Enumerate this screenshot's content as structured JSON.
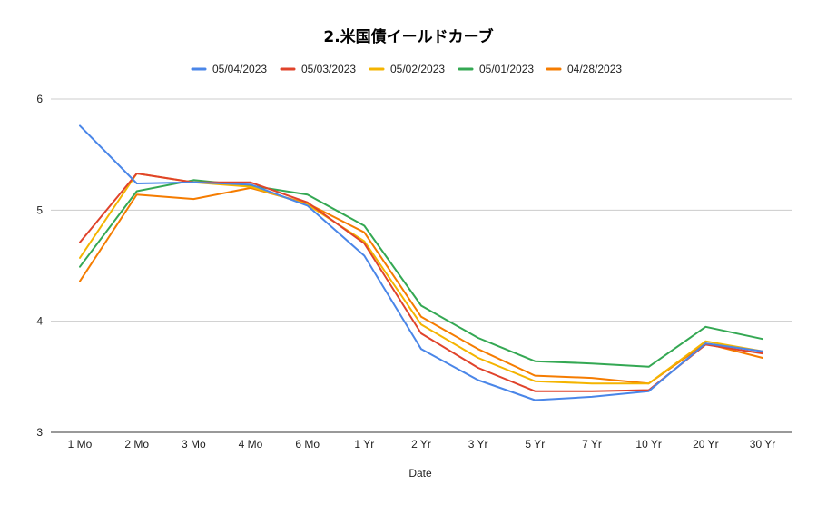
{
  "chart_data": {
    "type": "line",
    "title": "2.米国債イールドカーブ",
    "xlabel": "Date",
    "ylabel": "",
    "ylim": [
      3,
      6
    ],
    "yticks": [
      "3",
      "4",
      "5",
      "6"
    ],
    "grid": true,
    "legend_position": "top",
    "categories": [
      "1 Mo",
      "2 Mo",
      "3 Mo",
      "4 Mo",
      "6 Mo",
      "1 Yr",
      "2 Yr",
      "3 Yr",
      "5 Yr",
      "7 Yr",
      "10 Yr",
      "20 Yr",
      "30 Yr"
    ],
    "series": [
      {
        "name": "05/04/2023",
        "color": "#4a86e8",
        "values": [
          5.76,
          5.24,
          5.25,
          5.23,
          5.04,
          4.59,
          3.75,
          3.47,
          3.29,
          3.32,
          3.37,
          3.8,
          3.73
        ]
      },
      {
        "name": "05/03/2023",
        "color": "#e0432b",
        "values": [
          4.71,
          5.33,
          5.25,
          5.25,
          5.07,
          4.7,
          3.89,
          3.58,
          3.37,
          3.37,
          3.38,
          3.79,
          3.71
        ]
      },
      {
        "name": "05/02/2023",
        "color": "#f4b400",
        "values": [
          4.57,
          5.33,
          5.25,
          5.21,
          5.05,
          4.72,
          3.97,
          3.67,
          3.46,
          3.44,
          3.44,
          3.82,
          3.73
        ]
      },
      {
        "name": "05/01/2023",
        "color": "#34a853",
        "values": [
          4.49,
          5.17,
          5.27,
          5.22,
          5.14,
          4.86,
          4.14,
          3.85,
          3.64,
          3.62,
          3.59,
          3.95,
          3.84
        ]
      },
      {
        "name": "04/28/2023",
        "color": "#f57c00",
        "values": [
          4.36,
          5.14,
          5.1,
          5.2,
          5.06,
          4.8,
          4.04,
          3.75,
          3.51,
          3.49,
          3.44,
          3.8,
          3.67
        ]
      }
    ]
  }
}
